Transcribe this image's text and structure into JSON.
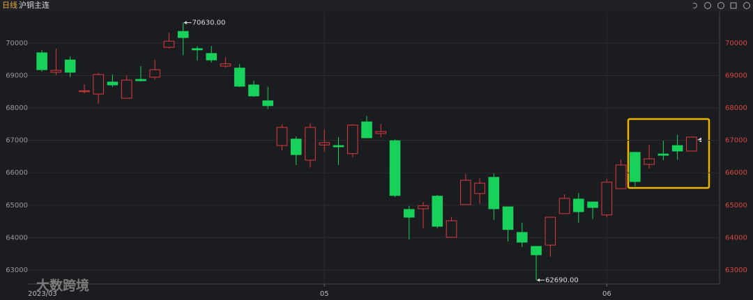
{
  "header": {
    "period": "日线",
    "symbol": "沪铜主连"
  },
  "watermark": "大数跨境",
  "chart_data": {
    "type": "candlestick",
    "categories": [
      "2023/03",
      null,
      null,
      null,
      null,
      null,
      null,
      null,
      null,
      null,
      null,
      null,
      null,
      null,
      null,
      null,
      null,
      null,
      null,
      null,
      "05",
      null,
      null,
      null,
      null,
      null,
      null,
      null,
      null,
      null,
      null,
      null,
      null,
      null,
      null,
      null,
      null,
      null,
      null,
      null,
      "06",
      null,
      null,
      null,
      null,
      null,
      null
    ],
    "series": [
      {
        "up_color": "#e0393e",
        "down_color": "#18d15b",
        "open": [
          69700,
          69100,
          69480,
          68500,
          68430,
          68800,
          68300,
          68880,
          68950,
          69870,
          70360,
          69830,
          69680,
          69290,
          69230,
          68710,
          68220,
          66840,
          67040,
          66390,
          66860,
          66840,
          66590,
          67570,
          67210,
          66990,
          64870,
          64890,
          65280,
          64010,
          65020,
          65360,
          65860,
          64950,
          64160,
          63730,
          63770,
          64740,
          65190,
          65100,
          64700,
          65510,
          66630,
          66260,
          66580,
          66840,
          66670
        ],
        "high": [
          69785,
          69830,
          69590,
          68730,
          69080,
          69030,
          69000,
          69290,
          69480,
          70320,
          70630,
          69910,
          69910,
          69560,
          69360,
          68840,
          68650,
          67490,
          67120,
          67530,
          67340,
          67100,
          67500,
          67750,
          67510,
          67030,
          64980,
          65100,
          65320,
          64640,
          65960,
          65830,
          65980,
          64950,
          64460,
          63730,
          64630,
          65340,
          65380,
          65100,
          65810,
          66410,
          66650,
          66860,
          66990,
          67170,
          67100
        ],
        "low": [
          69120,
          69010,
          68950,
          68450,
          68130,
          68650,
          68300,
          68820,
          68880,
          69830,
          69630,
          69460,
          69400,
          69240,
          68640,
          68340,
          67960,
          66690,
          66240,
          66160,
          66650,
          66240,
          66480,
          67080,
          67100,
          65250,
          63940,
          64280,
          64290,
          64010,
          65020,
          65040,
          64540,
          63880,
          63710,
          62690,
          63410,
          64740,
          64460,
          64570,
          64630,
          65510,
          65580,
          66130,
          66390,
          66400,
          66670
        ],
        "close": [
          69180,
          69160,
          69100,
          68530,
          69030,
          68710,
          68860,
          68840,
          69180,
          70060,
          70170,
          69790,
          69480,
          69360,
          68670,
          68370,
          68070,
          67400,
          66560,
          67400,
          66930,
          66800,
          67470,
          67080,
          67270,
          65300,
          64630,
          64980,
          64350,
          64520,
          65770,
          65680,
          64890,
          64250,
          63860,
          63470,
          64630,
          65210,
          64800,
          64930,
          65710,
          66240,
          65730,
          66430,
          66540,
          66670,
          67100
        ]
      }
    ],
    "annotations": [
      "70630.00",
      "62690.00"
    ],
    "ylim": [
      62570,
      70900
    ],
    "yticks": [
      63000,
      64000,
      65000,
      66000,
      67000,
      68000,
      69000,
      70000
    ],
    "grid": true
  }
}
